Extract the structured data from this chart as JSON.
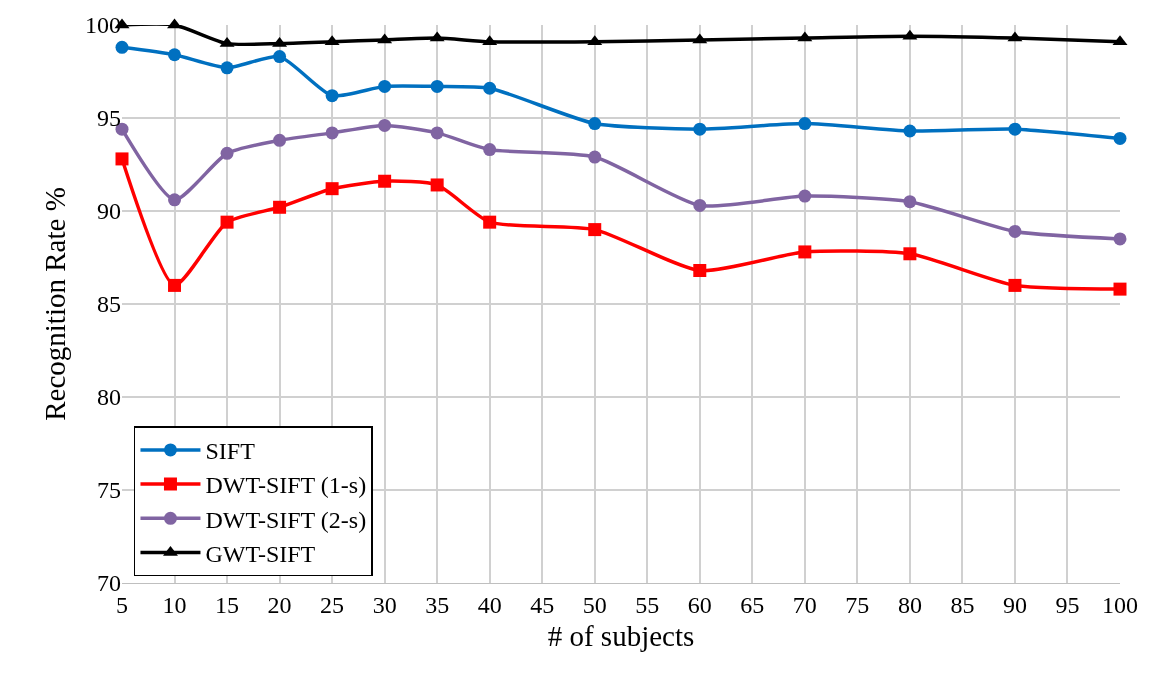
{
  "chart_data": {
    "type": "line",
    "xlabel": "# of subjects",
    "ylabel": "Recognition Rate %",
    "x": [
      5,
      10,
      15,
      20,
      25,
      30,
      35,
      40,
      50,
      60,
      70,
      80,
      90,
      100
    ],
    "series": [
      {
        "name": "SIFT",
        "color": "#0070c0",
        "marker": "circle",
        "values": [
          98.8,
          98.4,
          97.7,
          98.3,
          96.2,
          96.7,
          96.7,
          96.6,
          94.7,
          94.4,
          94.7,
          94.3,
          94.4,
          93.9
        ]
      },
      {
        "name": "DWT-SIFT (1-s)",
        "color": "#ff0000",
        "marker": "square",
        "values": [
          92.8,
          86.0,
          89.4,
          90.2,
          91.2,
          91.6,
          91.4,
          89.4,
          89.0,
          86.8,
          87.8,
          87.7,
          86.0,
          85.8
        ]
      },
      {
        "name": "DWT-SIFT (2-s)",
        "color": "#8064a2",
        "marker": "circle",
        "values": [
          94.4,
          90.6,
          93.1,
          93.8,
          94.2,
          94.6,
          94.2,
          93.3,
          92.9,
          90.3,
          90.8,
          90.5,
          88.9,
          88.5
        ]
      },
      {
        "name": "GWT-SIFT",
        "color": "#000000",
        "marker": "triangle",
        "values": [
          100.0,
          100.0,
          99.0,
          99.0,
          99.1,
          99.2,
          99.3,
          99.1,
          99.1,
          99.2,
          99.3,
          99.4,
          99.3,
          99.1
        ]
      }
    ],
    "xlim": [
      5,
      100
    ],
    "xticks": [
      5,
      10,
      15,
      20,
      25,
      30,
      35,
      40,
      45,
      50,
      55,
      60,
      65,
      70,
      75,
      80,
      85,
      90,
      95,
      100
    ],
    "ylim": [
      70,
      100
    ],
    "yticks": [
      70,
      75,
      80,
      85,
      90,
      95,
      100
    ],
    "grid": true,
    "legend": "bottom left",
    "line_style": "solid"
  }
}
